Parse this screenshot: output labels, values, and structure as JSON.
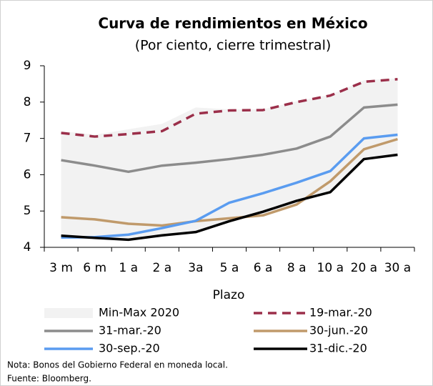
{
  "chart_data": {
    "type": "line",
    "title": "Curva de rendimientos en México",
    "subtitle": "(Por ciento, cierre trimestral)",
    "x_label": "Plazo",
    "categories": [
      "3 m",
      "6 m",
      "1 a",
      "2 a",
      "3a",
      "5 a",
      "6 a",
      "8 a",
      "10 a",
      "20 a",
      "30 a"
    ],
    "band": {
      "name": "Min-Max 2020",
      "color": "#f2f2f2",
      "min": [
        4.25,
        4.25,
        4.2,
        4.33,
        4.42,
        4.72,
        4.88,
        5.18,
        5.52,
        6.43,
        6.55
      ],
      "max": [
        7.2,
        7.1,
        7.25,
        7.4,
        7.85,
        7.8,
        7.8,
        8.02,
        8.2,
        8.6,
        8.65
      ]
    },
    "series": [
      {
        "name": "19-mar.-20",
        "color": "#9b2f4a",
        "dashed": true,
        "values": [
          7.15,
          7.05,
          7.12,
          7.2,
          7.68,
          7.77,
          7.78,
          8.0,
          8.18,
          8.56,
          8.63
        ]
      },
      {
        "name": "31-mar.-20",
        "color": "#8c8c8c",
        "values": [
          6.4,
          6.25,
          6.08,
          6.25,
          6.33,
          6.43,
          6.55,
          6.72,
          7.05,
          7.85,
          7.93
        ]
      },
      {
        "name": "30-jun.-20",
        "color": "#c09a6b",
        "values": [
          4.83,
          4.77,
          4.65,
          4.6,
          4.72,
          4.8,
          4.88,
          5.18,
          5.82,
          6.7,
          6.98
        ]
      },
      {
        "name": "30-sep.-20",
        "color": "#5a9cf0",
        "values": [
          4.27,
          4.28,
          4.35,
          4.53,
          4.73,
          5.23,
          5.49,
          5.78,
          6.1,
          7.0,
          7.1
        ]
      },
      {
        "name": "31-dic.-20",
        "color": "#000000",
        "values": [
          4.32,
          4.26,
          4.21,
          4.33,
          4.42,
          4.72,
          4.98,
          5.28,
          5.52,
          6.43,
          6.55
        ]
      }
    ],
    "ylim": [
      4,
      9
    ],
    "yticks": [
      4,
      5,
      6,
      7,
      8,
      9
    ],
    "notes": [
      "Nota: Bonos del Gobierno Federal en moneda local.",
      "Fuente: Bloomberg."
    ]
  }
}
